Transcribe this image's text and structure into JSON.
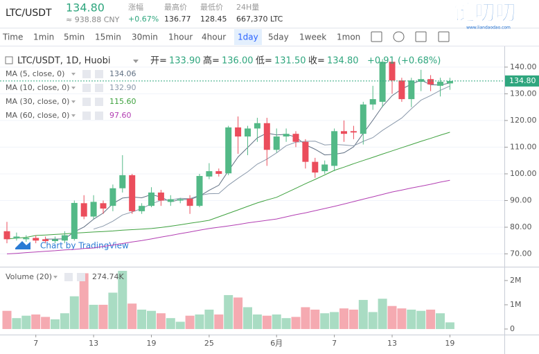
{
  "header": {
    "symbol": "LTC/USDT",
    "price": "134.80",
    "cny": "≈ 938.88 CNY",
    "stats": [
      {
        "label": "涨幅",
        "value": "+0.67%"
      },
      {
        "label": "最高价",
        "value": "136.77"
      },
      {
        "label": "最低价",
        "value": "128.45"
      },
      {
        "label": "24H量",
        "value": "667,370 LTC"
      }
    ],
    "logo": "链叨叨",
    "logo_url": "www.liandaodao.com"
  },
  "toolbar": {
    "intervals": [
      "Time",
      "1min",
      "5min",
      "15min",
      "30min",
      "1hour",
      "4hour",
      "1day",
      "5day",
      "1week",
      "1mon"
    ],
    "active": "1day"
  },
  "chart_data": [
    {
      "type": "candlestick",
      "title": "LTC/USDT, 1D, Huobi",
      "ohlc": [
        {
          "label": "开=",
          "value": "133.90"
        },
        {
          "label": "高=",
          "value": "136.00"
        },
        {
          "label": "低=",
          "value": "131.50"
        },
        {
          "label": "收=",
          "value": "134.80"
        }
      ],
      "change": "+0.91 (+0.68%)",
      "watermark": "Chart by TradingView",
      "categories": [
        null,
        null,
        null,
        "7",
        null,
        null,
        null,
        null,
        null,
        "13",
        null,
        null,
        null,
        null,
        null,
        "19",
        null,
        null,
        null,
        null,
        null,
        "25",
        null,
        null,
        null,
        null,
        null,
        null,
        "6月",
        null,
        null,
        null,
        null,
        null,
        "7",
        null,
        null,
        null,
        null,
        null,
        "13",
        null,
        null,
        null,
        null,
        null,
        "19"
      ],
      "open": [
        78.5,
        75.8,
        75.5,
        76,
        75.5,
        74.8,
        75,
        75.6,
        89,
        84,
        89,
        88,
        94.6,
        99.5,
        86,
        88,
        93,
        89.5,
        90,
        90.7,
        88,
        99,
        101,
        100.2,
        117.4,
        114,
        117,
        119,
        109,
        114,
        115,
        112,
        104.5,
        101,
        103,
        116,
        116,
        115,
        126,
        127,
        142,
        135,
        128,
        134.5,
        135.5,
        133,
        133.9
      ],
      "high": [
        82,
        78,
        77,
        77,
        76.5,
        76.5,
        78.5,
        90,
        92,
        92,
        90,
        96,
        107,
        100,
        89,
        95,
        94,
        92,
        91,
        92,
        100,
        104,
        102,
        118,
        121.5,
        118,
        121,
        121,
        117,
        117,
        116,
        113,
        106,
        105,
        117,
        120,
        118,
        127,
        133,
        143,
        142.5,
        136,
        136,
        139,
        137,
        136,
        136
      ],
      "low": [
        74,
        75,
        74.5,
        74,
        74,
        74,
        74,
        75,
        83,
        83,
        85,
        86,
        93,
        85,
        85,
        87.5,
        88,
        88,
        89,
        85,
        87.5,
        98,
        99,
        99.5,
        107.5,
        107,
        112,
        103,
        108,
        112,
        110,
        102,
        98.5,
        100,
        101,
        112,
        113,
        111,
        124,
        125,
        130,
        127,
        125,
        131,
        131,
        129,
        131.5
      ],
      "close": [
        75.5,
        76.5,
        76,
        75,
        74.8,
        75.5,
        77,
        89.1,
        84,
        89.5,
        87,
        94.6,
        99.5,
        86,
        88,
        93,
        90,
        90.5,
        90.5,
        88,
        99.2,
        101,
        100,
        117.4,
        114,
        117,
        119,
        109,
        114,
        115,
        112,
        104.5,
        100.5,
        103.5,
        116,
        115,
        115.5,
        126,
        128,
        142,
        135,
        128,
        135,
        135.5,
        133.5,
        134.5,
        134.8
      ],
      "up_color": "#53b987",
      "down_color": "#eb4d5c",
      "series": [
        {
          "name": "MA (5, close, 0)",
          "last": "134.06",
          "color": "#5f6f82",
          "values": [
            null,
            null,
            null,
            null,
            75.56,
            75.56,
            75.66,
            78.28,
            80.08,
            83.02,
            85.32,
            88.84,
            90.92,
            91.32,
            91.02,
            92.22,
            91.3,
            89.5,
            90.4,
            90.4,
            91.64,
            93.84,
            95.74,
            101.12,
            106.32,
            109.88,
            113.48,
            115.28,
            114.6,
            114.8,
            113.8,
            110.9,
            109.2,
            107.1,
            107.3,
            107.9,
            110.1,
            115.2,
            120.1,
            125.3,
            129.3,
            131.8,
            133.6,
            135.1,
            133.4,
            133.3,
            134.06
          ]
        },
        {
          "name": "MA (10, close, 0)",
          "last": "132.90",
          "color": "#8a99ab",
          "values": [
            null,
            null,
            null,
            null,
            null,
            null,
            null,
            null,
            null,
            79.29,
            80.44,
            82.25,
            84.6,
            85.7,
            87.02,
            88.77,
            90.07,
            90.21,
            90.86,
            90.71,
            91.93,
            92.57,
            92.62,
            95.76,
            98.36,
            100.76,
            103.66,
            105.51,
            107.86,
            110.56,
            111.84,
            112.19,
            112.24,
            110.85,
            111.05,
            110.85,
            110.5,
            112.2,
            113.6,
            116.3,
            118.6,
            120.95,
            124.4,
            127.6,
            129.35,
            131.3,
            132.9
          ]
        },
        {
          "name": "MA (30, close, 0)",
          "last": "115.60",
          "color": "#3ea13e",
          "values": [
            75.6,
            75.9,
            76.2,
            76.9,
            77.1,
            77.3,
            77.5,
            77.8,
            78.0,
            78.2,
            78.4,
            78.6,
            78.9,
            79.1,
            79.3,
            79.5,
            79.9,
            80.4,
            80.9,
            81.5,
            82.0,
            82.6,
            83.9,
            85.2,
            86.5,
            87.8,
            89.1,
            90.2,
            91.2,
            92.9,
            94.6,
            96.3,
            97.9,
            99.6,
            101.3,
            102.5,
            103.8,
            105.0,
            106.2,
            107.4,
            108.6,
            109.8,
            111.0,
            112.2,
            113.3,
            114.5,
            115.6
          ]
        },
        {
          "name": "MA (60, close, 0)",
          "last": "97.60",
          "color": "#b23db2",
          "values": [
            70.0,
            70.2,
            70.5,
            70.7,
            71.0,
            71.2,
            71.5,
            71.7,
            72.0,
            72.2,
            72.8,
            73.3,
            73.9,
            74.5,
            75.0,
            75.6,
            76.3,
            76.9,
            77.6,
            78.2,
            78.9,
            79.5,
            80.0,
            80.5,
            81.0,
            81.6,
            82.1,
            82.6,
            83.1,
            83.9,
            84.7,
            85.4,
            86.2,
            87.0,
            87.8,
            88.7,
            89.6,
            90.5,
            91.4,
            92.3,
            93.2,
            93.9,
            94.7,
            95.4,
            96.1,
            96.9,
            97.6
          ]
        }
      ],
      "ylim": [
        65.2,
        144.9
      ],
      "yticks": [
        {
          "value": 70,
          "label": "70.00"
        },
        {
          "value": 80,
          "label": "80.00"
        },
        {
          "value": 90,
          "label": "90.00"
        },
        {
          "value": 100,
          "label": "100.00"
        },
        {
          "value": 110,
          "label": "110.00"
        },
        {
          "value": 120,
          "label": "120.00"
        },
        {
          "value": 130,
          "label": "130.00"
        },
        {
          "value": 140,
          "label": "140.00"
        }
      ],
      "price_line": {
        "value": 134.8,
        "label": "134.80"
      },
      "grid": true
    },
    {
      "type": "bar",
      "title": "Volume (20)",
      "last": "274.74K",
      "up_color": "#a9dcc3",
      "down_color": "#f5aab1",
      "values": [
        0.75,
        0.45,
        0.55,
        0.6,
        0.5,
        0.4,
        0.65,
        1.35,
        2.3,
        1.0,
        1.0,
        1.5,
        2.4,
        1.05,
        0.8,
        0.75,
        0.65,
        0.45,
        0.3,
        0.55,
        0.6,
        0.8,
        0.6,
        1.4,
        1.3,
        0.9,
        0.6,
        0.55,
        0.6,
        0.45,
        0.5,
        0.9,
        0.8,
        0.65,
        0.7,
        0.85,
        0.8,
        1.2,
        0.7,
        1.25,
        0.95,
        0.85,
        0.8,
        0.75,
        0.8,
        0.65,
        0.27474
      ],
      "ylim": [
        -0.23,
        2.57
      ],
      "yticks": [
        0,
        {
          "value": 1,
          "label": "1M"
        },
        {
          "value": 2,
          "label": "2M"
        }
      ]
    }
  ]
}
